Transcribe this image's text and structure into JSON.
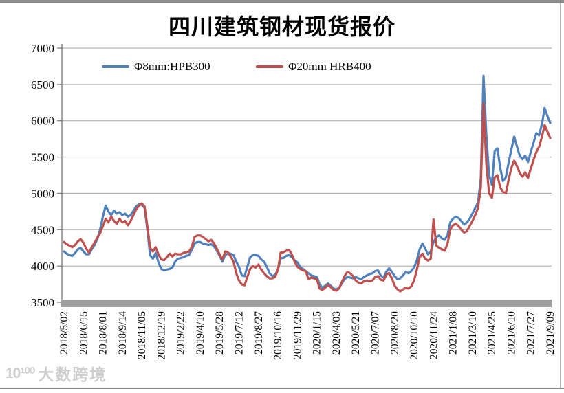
{
  "page": {
    "title": "四川建筑钢材现货报价"
  },
  "watermark": {
    "logo": "10¹⁰⁰",
    "text": "大数跨境"
  },
  "chart_data": {
    "type": "line",
    "title": "四川建筑钢材现货报价",
    "xlabel": "",
    "ylabel": "",
    "ylim": [
      3500,
      7000
    ],
    "y_ticks": [
      7000,
      6500,
      6000,
      5500,
      5000,
      4500,
      4000,
      3500
    ],
    "grid": true,
    "legend_position": "top-inside",
    "x_label_every_nth_point": 7,
    "x_labels": [
      "2018/5/02",
      "2018/6/15",
      "2018/8/01",
      "2018/9/14",
      "2018/11/05",
      "2018/12/19",
      "2019/2/22",
      "2019/4/10",
      "2019/5/28",
      "2019/7/12",
      "2019/8/27",
      "2019/10/16",
      "2019/11/29",
      "2020/1/15",
      "2020/4/03",
      "2020/5/21",
      "2020/7/07",
      "2020/8/20",
      "2020/10/10",
      "2020/11/24",
      "2021/1/08",
      "2021/3/10",
      "2021/4/25",
      "2021/6/10",
      "2021/7/27",
      "2021/9/09"
    ],
    "baseline_bar_color": "#9e9e9e",
    "grid_color": "#a6a6a6",
    "axis_color": "#808080",
    "series": [
      {
        "name": "Φ8mm:HPB300",
        "color": "#4F81BD",
        "values": [
          4200,
          4170,
          4150,
          4140,
          4180,
          4230,
          4250,
          4200,
          4160,
          4160,
          4230,
          4290,
          4370,
          4500,
          4680,
          4830,
          4750,
          4700,
          4760,
          4720,
          4740,
          4700,
          4720,
          4680,
          4700,
          4760,
          4820,
          4850,
          4840,
          4800,
          4500,
          4150,
          4100,
          4180,
          4050,
          3960,
          3940,
          3950,
          3960,
          3980,
          4060,
          4100,
          4110,
          4120,
          4140,
          4150,
          4220,
          4310,
          4330,
          4330,
          4310,
          4300,
          4290,
          4300,
          4270,
          4210,
          4140,
          4060,
          4150,
          4170,
          4170,
          4150,
          4060,
          3990,
          3870,
          3860,
          3990,
          4120,
          4150,
          4150,
          4140,
          4090,
          4060,
          3990,
          3900,
          3860,
          3880,
          3950,
          4110,
          4110,
          4140,
          4150,
          4120,
          4080,
          4050,
          3990,
          3960,
          3930,
          3900,
          3870,
          3860,
          3850,
          3750,
          3700,
          3730,
          3760,
          3730,
          3690,
          3680,
          3700,
          3760,
          3820,
          3850,
          3840,
          3830,
          3850,
          3830,
          3820,
          3850,
          3870,
          3890,
          3900,
          3930,
          3940,
          3870,
          3840,
          3920,
          3970,
          3920,
          3860,
          3820,
          3830,
          3870,
          3920,
          3900,
          3930,
          3980,
          4080,
          4230,
          4310,
          4240,
          4160,
          4200,
          4330,
          4400,
          4420,
          4380,
          4360,
          4420,
          4600,
          4650,
          4680,
          4660,
          4620,
          4570,
          4600,
          4650,
          4720,
          4800,
          4870,
          5200,
          6620,
          5800,
          5250,
          5120,
          5580,
          5620,
          5350,
          5170,
          5220,
          5420,
          5600,
          5780,
          5650,
          5520,
          5470,
          5520,
          5430,
          5570,
          5700,
          5830,
          5800,
          5950,
          6175,
          6060,
          5970
        ]
      },
      {
        "name": "Φ20mm HRB400",
        "color": "#C0504D",
        "values": [
          4330,
          4300,
          4280,
          4260,
          4290,
          4340,
          4370,
          4320,
          4240,
          4180,
          4260,
          4320,
          4390,
          4450,
          4550,
          4650,
          4600,
          4680,
          4620,
          4580,
          4650,
          4600,
          4620,
          4560,
          4620,
          4700,
          4780,
          4830,
          4860,
          4820,
          4550,
          4250,
          4200,
          4260,
          4160,
          4090,
          4080,
          4120,
          4170,
          4130,
          4170,
          4160,
          4160,
          4180,
          4190,
          4200,
          4260,
          4400,
          4420,
          4420,
          4400,
          4370,
          4340,
          4360,
          4310,
          4240,
          4160,
          4090,
          4200,
          4190,
          4130,
          4060,
          3900,
          3800,
          3745,
          3735,
          3850,
          3960,
          4000,
          3980,
          4020,
          3950,
          3900,
          3860,
          3830,
          3830,
          3850,
          3950,
          4185,
          4190,
          4210,
          4220,
          4160,
          4060,
          3990,
          3960,
          3940,
          3930,
          3820,
          3840,
          3830,
          3820,
          3690,
          3670,
          3700,
          3740,
          3710,
          3670,
          3660,
          3690,
          3780,
          3860,
          3920,
          3900,
          3860,
          3800,
          3770,
          3760,
          3790,
          3800,
          3790,
          3800,
          3850,
          3860,
          3810,
          3800,
          3880,
          3905,
          3830,
          3730,
          3680,
          3650,
          3680,
          3700,
          3690,
          3720,
          3800,
          3950,
          4120,
          4170,
          4100,
          4075,
          4100,
          4640,
          4280,
          4250,
          4230,
          4210,
          4300,
          4500,
          4560,
          4580,
          4550,
          4500,
          4460,
          4480,
          4550,
          4620,
          4700,
          4800,
          5080,
          6240,
          5400,
          5000,
          4940,
          5220,
          5250,
          5080,
          5020,
          5000,
          5180,
          5350,
          5450,
          5380,
          5280,
          5230,
          5290,
          5210,
          5340,
          5460,
          5570,
          5640,
          5780,
          5940,
          5850,
          5760
        ]
      }
    ]
  }
}
